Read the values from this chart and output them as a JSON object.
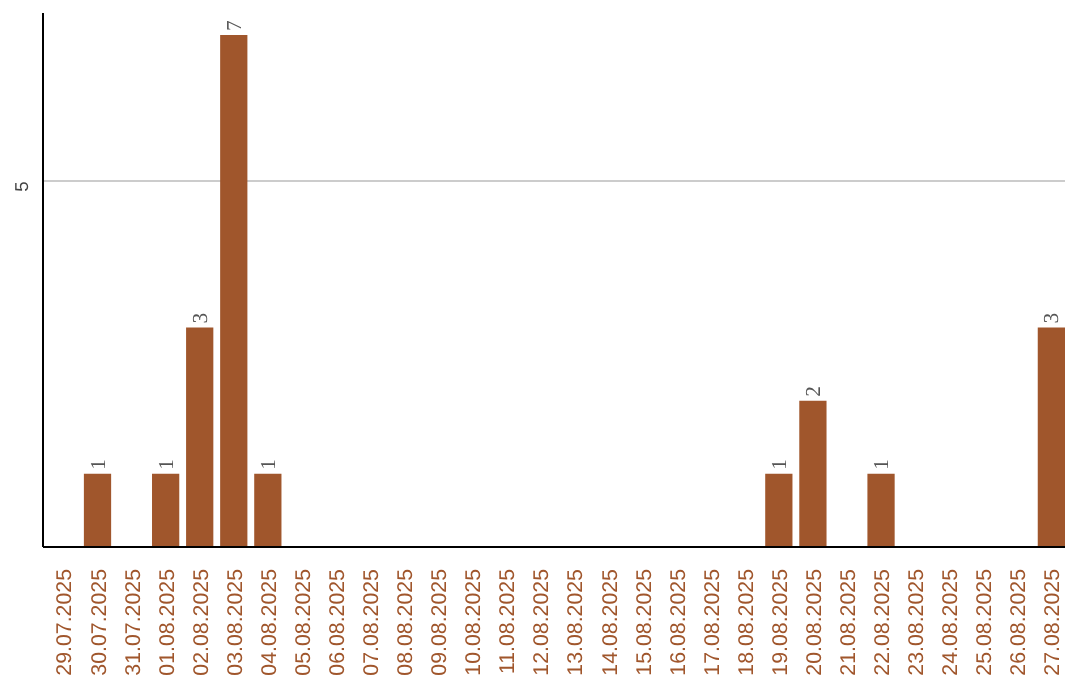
{
  "chart_data": {
    "type": "bar",
    "categories": [
      "29.07.2025",
      "30.07.2025",
      "31.07.2025",
      "01.08.2025",
      "02.08.2025",
      "03.08.2025",
      "04.08.2025",
      "05.08.2025",
      "06.08.2025",
      "07.08.2025",
      "08.08.2025",
      "09.08.2025",
      "10.08.2025",
      "11.08.2025",
      "12.08.2025",
      "13.08.2025",
      "14.08.2025",
      "15.08.2025",
      "16.08.2025",
      "17.08.2025",
      "18.08.2025",
      "19.08.2025",
      "20.08.2025",
      "21.08.2025",
      "22.08.2025",
      "23.08.2025",
      "24.08.2025",
      "25.08.2025",
      "26.08.2025",
      "27.08.2025"
    ],
    "values": [
      0,
      1,
      0,
      1,
      3,
      7,
      1,
      0,
      0,
      0,
      0,
      0,
      0,
      0,
      0,
      0,
      0,
      0,
      0,
      0,
      0,
      1,
      2,
      0,
      1,
      0,
      0,
      0,
      0,
      3
    ],
    "value_labels": [
      null,
      "1",
      null,
      "1",
      "3",
      "7",
      "1",
      null,
      null,
      null,
      null,
      null,
      null,
      null,
      null,
      null,
      null,
      null,
      null,
      null,
      null,
      "1",
      "2",
      null,
      "1",
      null,
      null,
      null,
      null,
      "3"
    ],
    "color": "#a0562c",
    "ylim": [
      0,
      7.3
    ],
    "yticks": [
      5
    ],
    "grid": "y"
  }
}
